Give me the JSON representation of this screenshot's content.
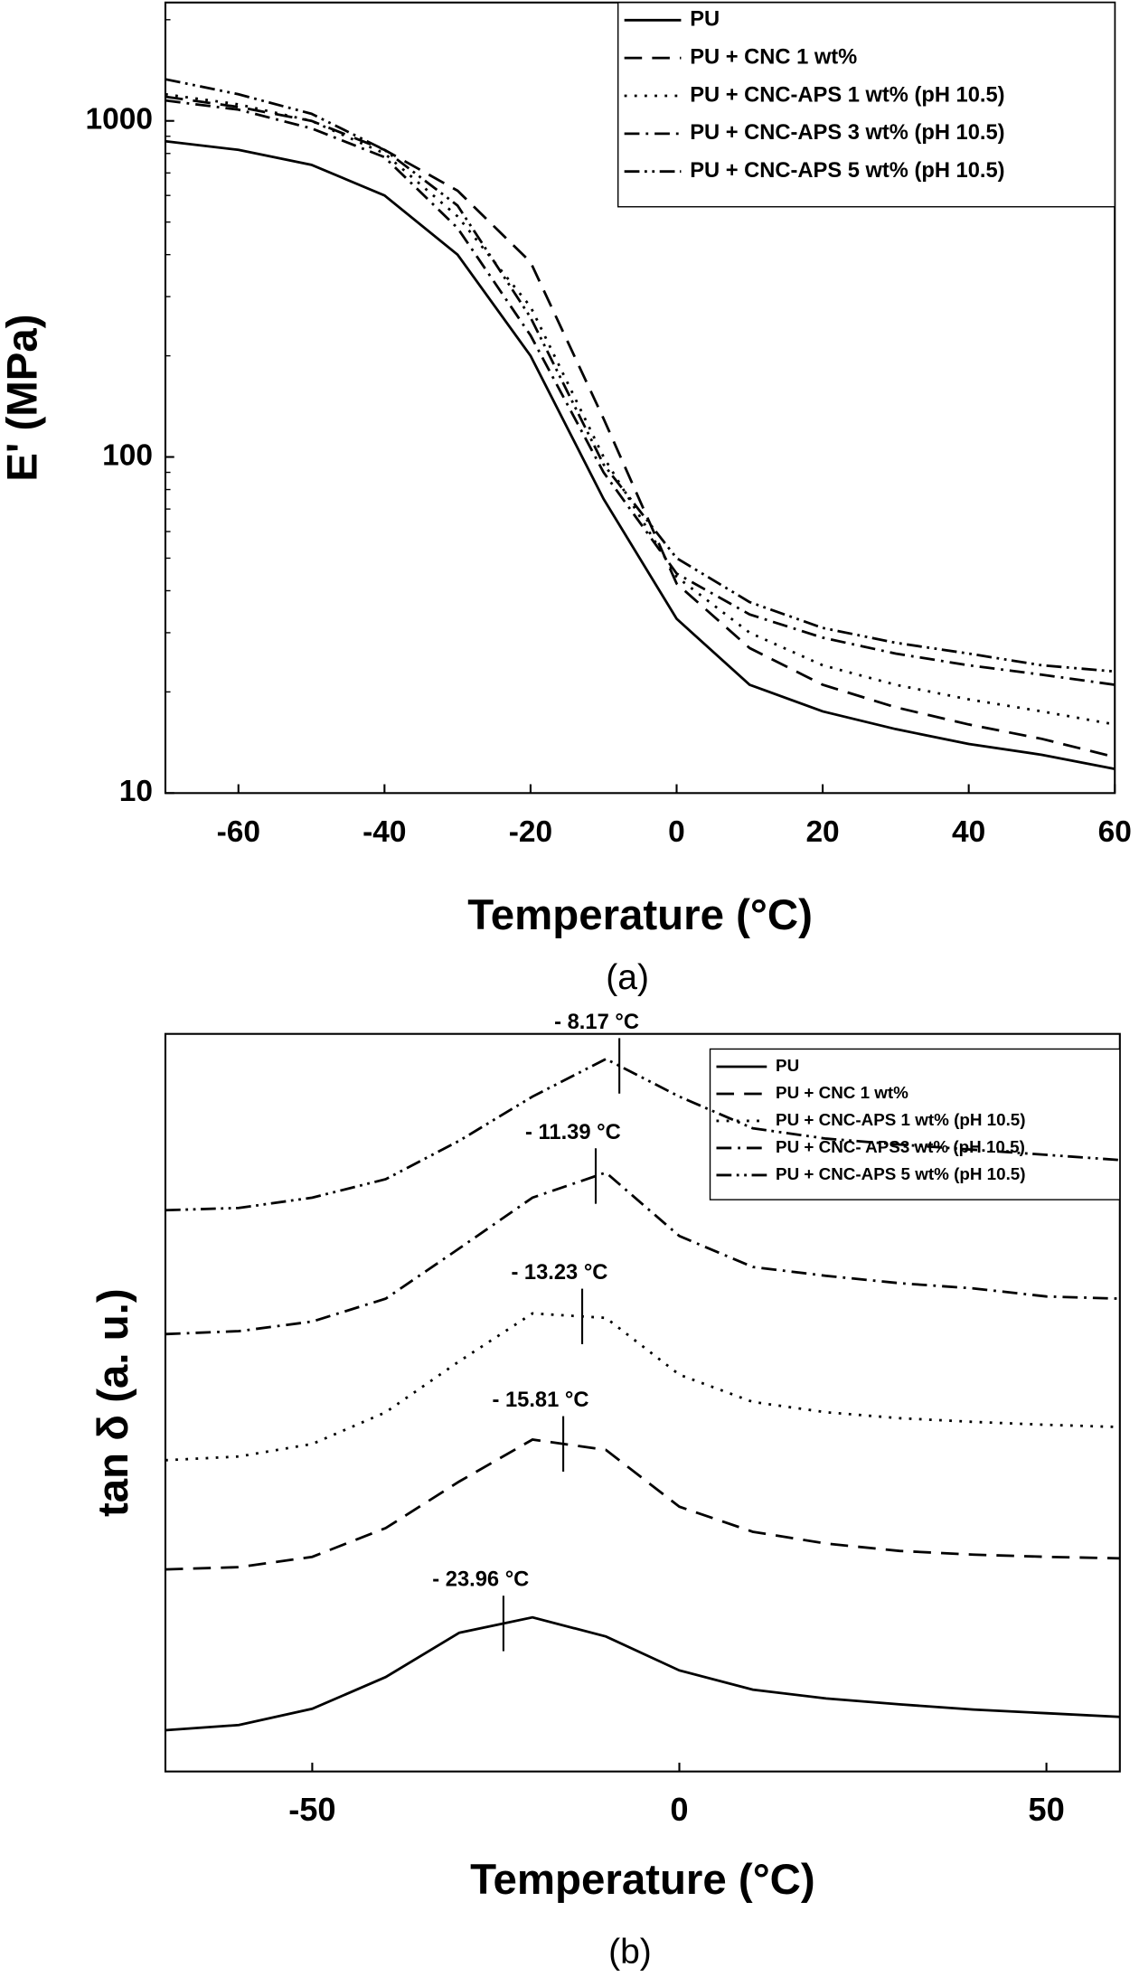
{
  "chart_data": [
    {
      "type": "line",
      "ylabel": "E' (MPa)",
      "xlabel": "Temperature (°C)",
      "caption": "(a)",
      "ylog": true,
      "legend": "upper right",
      "xlim": [
        -70,
        60
      ],
      "ylim": [
        10,
        2250
      ],
      "xticks": [
        -60,
        -40,
        -20,
        0,
        20,
        40,
        60
      ],
      "yticks": [
        10,
        100,
        1000
      ],
      "x": [
        -70,
        -60,
        -50,
        -40,
        -30,
        -20,
        -10,
        0,
        10,
        20,
        30,
        40,
        50,
        60
      ],
      "series": [
        {
          "name": "PU",
          "color": "#000000",
          "line_style": "solid",
          "values": [
            870,
            820,
            740,
            600,
            400,
            200,
            75,
            33,
            21,
            17.5,
            15.5,
            14,
            13,
            11.8
          ]
        },
        {
          "name": "PU + CNC 1 wt%",
          "color": "#000000",
          "line_style": "dash",
          "values": [
            1180,
            1100,
            1000,
            820,
            620,
            380,
            130,
            42,
            27,
            21,
            18,
            16,
            14.5,
            12.8
          ]
        },
        {
          "name": "PU + CNC-APS 1 wt% (pH 10.5)",
          "color": "#000000",
          "line_style": "dot",
          "values": [
            1200,
            1120,
            1000,
            800,
            520,
            280,
            100,
            44,
            30,
            24,
            21,
            19,
            17.5,
            16
          ]
        },
        {
          "name": "PU + CNC-APS 3 wt% (pH 10.5)",
          "color": "#000000",
          "line_style": "dashdot",
          "values": [
            1150,
            1080,
            950,
            780,
            480,
            230,
            90,
            45,
            34,
            29,
            26,
            24,
            22.5,
            21
          ]
        },
        {
          "name": "PU + CNC-APS 5 wt% (pH 10.5)",
          "color": "#000000",
          "line_style": "dashdotdot",
          "values": [
            1330,
            1200,
            1050,
            820,
            560,
            260,
            95,
            50,
            37,
            31,
            28,
            26,
            24,
            23
          ]
        }
      ]
    },
    {
      "type": "line",
      "ylabel": "tan δ (a. u.)",
      "xlabel": "Temperature (°C)",
      "caption": "(b)",
      "ylog": false,
      "legend": "upper right",
      "xlim": [
        -70,
        60
      ],
      "ylim": [
        0,
        100
      ],
      "xticks": [
        -50,
        0,
        50
      ],
      "x": [
        -70,
        -60,
        -50,
        -40,
        -30,
        -20,
        -10,
        0,
        10,
        20,
        30,
        40,
        50,
        60
      ],
      "series": [
        {
          "name": "PU",
          "color": "#000000",
          "line_style": "solid",
          "peak_x": -23.96,
          "peak_label": "- 23.96 °C",
          "values": [
            5.6,
            6.3,
            8.5,
            12.8,
            18.8,
            20.9,
            18.3,
            13.7,
            11.1,
            9.9,
            9.1,
            8.4,
            7.9,
            7.4
          ]
        },
        {
          "name": "PU + CNC 1 wt%",
          "color": "#000000",
          "line_style": "dash",
          "peak_x": -15.81,
          "peak_label": "- 15.81 °C",
          "values": [
            27.4,
            27.7,
            29.1,
            33.0,
            39.3,
            45.0,
            43.6,
            35.9,
            32.5,
            30.9,
            29.9,
            29.4,
            29.1,
            28.9
          ]
        },
        {
          "name": "PU + CNC-APS 1 wt% (pH 10.5)",
          "color": "#000000",
          "line_style": "dot",
          "peak_x": -13.23,
          "peak_label": "- 13.23 °C",
          "values": [
            42.2,
            42.7,
            44.4,
            48.7,
            55.6,
            62.1,
            61.5,
            53.8,
            50.1,
            48.7,
            47.9,
            47.4,
            47.0,
            46.7
          ]
        },
        {
          "name": "PU + CNC- APS3 wt% (pH 10.5)",
          "color": "#000000",
          "line_style": "dashdot",
          "peak_x": -11.39,
          "peak_label": "- 11.39 °C",
          "values": [
            59.3,
            59.7,
            61.0,
            64.1,
            70.9,
            77.8,
            81.2,
            72.6,
            68.4,
            67.2,
            66.2,
            65.5,
            64.4,
            64.1
          ]
        },
        {
          "name": "PU + CNC-APS 5 wt% (pH 10.5)",
          "color": "#000000",
          "line_style": "dashdotdot",
          "peak_x": -8.17,
          "peak_label": "- 8.17 °C",
          "values": [
            76.1,
            76.4,
            77.8,
            80.3,
            85.5,
            91.5,
            96.6,
            91.5,
            87.2,
            85.8,
            85.0,
            84.3,
            83.6,
            82.9
          ]
        }
      ]
    }
  ]
}
